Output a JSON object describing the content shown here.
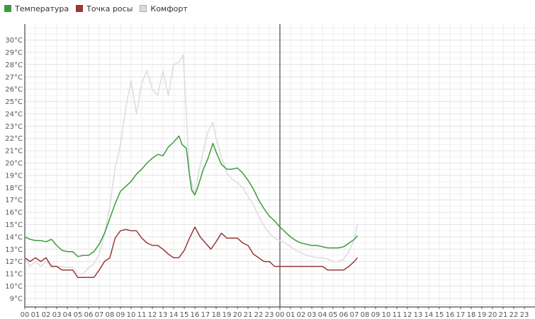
{
  "legend": [
    {
      "name": "Температура",
      "color": "#3a9b3a"
    },
    {
      "name": "Точка росы",
      "color": "#983838"
    },
    {
      "name": "Комфорт",
      "color": "#dcdcdc"
    }
  ],
  "chart_data": {
    "type": "line",
    "y_unit": "°C",
    "ylim": [
      8.3,
      31.3
    ],
    "y_ticks": [
      9,
      10,
      11,
      12,
      13,
      14,
      15,
      16,
      17,
      18,
      19,
      20,
      21,
      22,
      23,
      24,
      25,
      26,
      27,
      28,
      29,
      30
    ],
    "y_tick_labels": [
      "9°C",
      "10°C",
      "11°C",
      "12°C",
      "13°C",
      "14°C",
      "15°C",
      "16°C",
      "17°C",
      "18°C",
      "19°C",
      "20°C",
      "21°C",
      "22°C",
      "23°C",
      "24°C",
      "25°C",
      "26°C",
      "27°C",
      "28°C",
      "29°C",
      "30°C"
    ],
    "x_unit": "hours since start of first day",
    "xlim": [
      0,
      48
    ],
    "x_tick_labels": [
      "00",
      "01",
      "02",
      "03",
      "04",
      "05",
      "06",
      "07",
      "08",
      "09",
      "10",
      "11",
      "12",
      "13",
      "14",
      "15",
      "16",
      "17",
      "18",
      "19",
      "20",
      "21",
      "22",
      "23",
      "00",
      "01",
      "02",
      "03",
      "04",
      "05",
      "06",
      "07",
      "08",
      "09",
      "10",
      "11",
      "12",
      "13",
      "14",
      "15",
      "16",
      "17",
      "18",
      "19",
      "20",
      "21",
      "22",
      "23"
    ],
    "day_boundary_x": 24,
    "grid": true,
    "legend_position": "top-left",
    "series": [
      {
        "name": "Температура",
        "color": "#3a9b3a",
        "points": [
          [
            0,
            14.0
          ],
          [
            0.5,
            13.8
          ],
          [
            1,
            13.7
          ],
          [
            1.5,
            13.7
          ],
          [
            2,
            13.6
          ],
          [
            2.5,
            13.8
          ],
          [
            3,
            13.3
          ],
          [
            3.5,
            12.9
          ],
          [
            4,
            12.8
          ],
          [
            4.5,
            12.8
          ],
          [
            5,
            12.4
          ],
          [
            5.5,
            12.5
          ],
          [
            6,
            12.5
          ],
          [
            6.5,
            12.8
          ],
          [
            7,
            13.4
          ],
          [
            7.5,
            14.3
          ],
          [
            8,
            15.5
          ],
          [
            8.5,
            16.7
          ],
          [
            9,
            17.7
          ],
          [
            9.5,
            18.1
          ],
          [
            10,
            18.5
          ],
          [
            10.5,
            19.1
          ],
          [
            11,
            19.5
          ],
          [
            11.5,
            20.0
          ],
          [
            12,
            20.4
          ],
          [
            12.5,
            20.7
          ],
          [
            13,
            20.6
          ],
          [
            13.5,
            21.3
          ],
          [
            14,
            21.7
          ],
          [
            14.5,
            22.2
          ],
          [
            14.8,
            21.5
          ],
          [
            15.2,
            21.2
          ],
          [
            15.5,
            19.0
          ],
          [
            15.7,
            17.8
          ],
          [
            16,
            17.4
          ],
          [
            16.3,
            18.1
          ],
          [
            16.8,
            19.5
          ],
          [
            17.2,
            20.3
          ],
          [
            17.7,
            21.6
          ],
          [
            18,
            20.9
          ],
          [
            18.5,
            19.9
          ],
          [
            19,
            19.5
          ],
          [
            19.5,
            19.5
          ],
          [
            20,
            19.6
          ],
          [
            20.5,
            19.2
          ],
          [
            21,
            18.6
          ],
          [
            21.5,
            17.9
          ],
          [
            22,
            17.0
          ],
          [
            22.5,
            16.3
          ],
          [
            23,
            15.7
          ],
          [
            23.5,
            15.3
          ],
          [
            24,
            14.8
          ],
          [
            24.5,
            14.4
          ],
          [
            25,
            14.0
          ],
          [
            25.5,
            13.7
          ],
          [
            26,
            13.5
          ],
          [
            26.5,
            13.4
          ],
          [
            27,
            13.3
          ],
          [
            27.5,
            13.3
          ],
          [
            28,
            13.2
          ],
          [
            28.5,
            13.1
          ],
          [
            29,
            13.1
          ],
          [
            29.5,
            13.1
          ],
          [
            30,
            13.2
          ],
          [
            30.5,
            13.5
          ],
          [
            31,
            13.8
          ],
          [
            31.3,
            14.1
          ]
        ]
      },
      {
        "name": "Точка росы",
        "color": "#983838",
        "points": [
          [
            0,
            12.3
          ],
          [
            0.5,
            12.0
          ],
          [
            1,
            12.3
          ],
          [
            1.5,
            12.0
          ],
          [
            2,
            12.3
          ],
          [
            2.5,
            11.6
          ],
          [
            3,
            11.6
          ],
          [
            3.5,
            11.3
          ],
          [
            4,
            11.3
          ],
          [
            4.5,
            11.3
          ],
          [
            5,
            10.7
          ],
          [
            5.5,
            10.7
          ],
          [
            6,
            10.7
          ],
          [
            6.5,
            10.7
          ],
          [
            7,
            11.3
          ],
          [
            7.5,
            12.0
          ],
          [
            8,
            12.3
          ],
          [
            8.5,
            13.9
          ],
          [
            9,
            14.5
          ],
          [
            9.5,
            14.6
          ],
          [
            10,
            14.5
          ],
          [
            10.5,
            14.5
          ],
          [
            11,
            13.9
          ],
          [
            11.5,
            13.5
          ],
          [
            12,
            13.3
          ],
          [
            12.5,
            13.3
          ],
          [
            13,
            13.0
          ],
          [
            13.5,
            12.6
          ],
          [
            14,
            12.3
          ],
          [
            14.5,
            12.3
          ],
          [
            15,
            12.9
          ],
          [
            15.5,
            13.9
          ],
          [
            16,
            14.8
          ],
          [
            16.5,
            14.0
          ],
          [
            17,
            13.5
          ],
          [
            17.5,
            13.0
          ],
          [
            18,
            13.6
          ],
          [
            18.5,
            14.3
          ],
          [
            19,
            13.9
          ],
          [
            19.5,
            13.9
          ],
          [
            20,
            13.9
          ],
          [
            20.5,
            13.5
          ],
          [
            21,
            13.3
          ],
          [
            21.5,
            12.6
          ],
          [
            22,
            12.3
          ],
          [
            22.5,
            12.0
          ],
          [
            23,
            12.0
          ],
          [
            23.5,
            11.6
          ],
          [
            24,
            11.6
          ],
          [
            25,
            11.6
          ],
          [
            26,
            11.6
          ],
          [
            27,
            11.6
          ],
          [
            28,
            11.6
          ],
          [
            28.5,
            11.3
          ],
          [
            29,
            11.3
          ],
          [
            29.5,
            11.3
          ],
          [
            30,
            11.3
          ],
          [
            30.5,
            11.6
          ],
          [
            31,
            12.0
          ],
          [
            31.3,
            12.3
          ]
        ]
      },
      {
        "name": "Комфорт",
        "color": "#dcdcdc",
        "points": [
          [
            0,
            12.3
          ],
          [
            0.5,
            11.6
          ],
          [
            1,
            12.0
          ],
          [
            1.5,
            11.6
          ],
          [
            2,
            12.0
          ],
          [
            2.5,
            11.7
          ],
          [
            3,
            11.6
          ],
          [
            3.5,
            11.6
          ],
          [
            4,
            11.5
          ],
          [
            4.5,
            11.5
          ],
          [
            5,
            11.0
          ],
          [
            5.5,
            11.0
          ],
          [
            6,
            11.5
          ],
          [
            6.5,
            11.8
          ],
          [
            7,
            12.6
          ],
          [
            7.5,
            14.2
          ],
          [
            8,
            16.5
          ],
          [
            8.5,
            19.6
          ],
          [
            9,
            21.5
          ],
          [
            9.5,
            24.5
          ],
          [
            10,
            26.7
          ],
          [
            10.5,
            24.0
          ],
          [
            11,
            26.5
          ],
          [
            11.5,
            27.5
          ],
          [
            12,
            26.0
          ],
          [
            12.5,
            25.5
          ],
          [
            13,
            27.5
          ],
          [
            13.5,
            25.5
          ],
          [
            14,
            28.0
          ],
          [
            14.5,
            28.2
          ],
          [
            14.9,
            28.8
          ],
          [
            15.2,
            24.0
          ],
          [
            15.5,
            19.0
          ],
          [
            16,
            17.4
          ],
          [
            16.3,
            19.0
          ],
          [
            16.8,
            21.0
          ],
          [
            17.2,
            22.5
          ],
          [
            17.7,
            23.3
          ],
          [
            18,
            22.0
          ],
          [
            18.5,
            20.5
          ],
          [
            19,
            19.2
          ],
          [
            19.5,
            18.7
          ],
          [
            20,
            18.4
          ],
          [
            20.5,
            18.0
          ],
          [
            21,
            17.3
          ],
          [
            21.5,
            16.6
          ],
          [
            22,
            15.7
          ],
          [
            22.5,
            14.9
          ],
          [
            23,
            14.3
          ],
          [
            23.5,
            13.9
          ],
          [
            24,
            13.7
          ],
          [
            24.5,
            13.5
          ],
          [
            25,
            13.2
          ],
          [
            25.5,
            12.9
          ],
          [
            26,
            12.7
          ],
          [
            26.5,
            12.5
          ],
          [
            27,
            12.4
          ],
          [
            27.5,
            12.3
          ],
          [
            28,
            12.3
          ],
          [
            28.5,
            12.2
          ],
          [
            29,
            12.0
          ],
          [
            29.5,
            12.0
          ],
          [
            30,
            12.2
          ],
          [
            30.5,
            12.8
          ],
          [
            31,
            13.8
          ],
          [
            31.3,
            15.0
          ]
        ]
      }
    ]
  }
}
